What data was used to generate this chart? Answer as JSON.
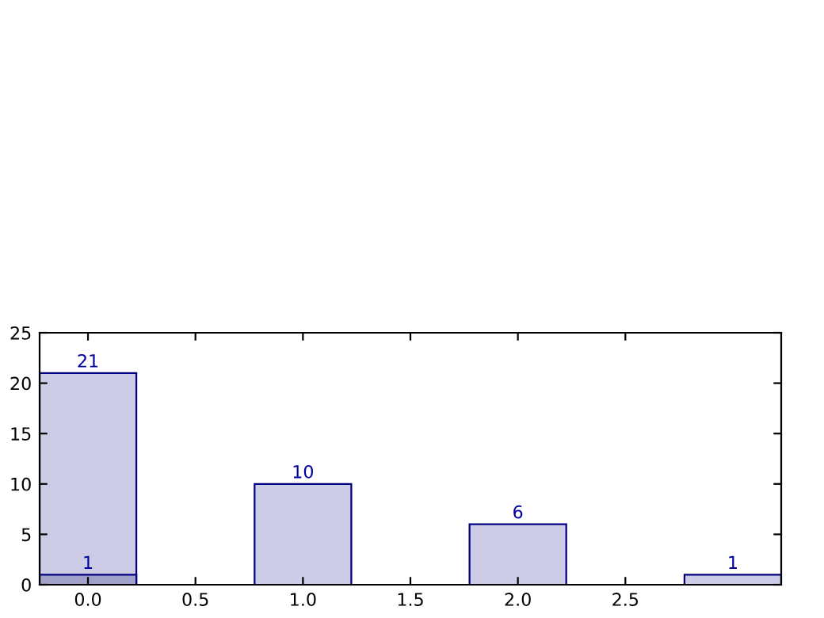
{
  "chart_data": {
    "type": "bar",
    "x": [
      0,
      1,
      2,
      3
    ],
    "series": [
      {
        "color": "#ccccE6",
        "values": [
          21,
          10,
          6,
          1
        ]
      },
      {
        "color": "#a0a0c8",
        "x": [
          0
        ],
        "values": [
          1
        ]
      }
    ],
    "data_labels": true,
    "xlim": [
      -0.225,
      3.225
    ],
    "ylim": [
      0,
      25
    ],
    "xticks": [
      {
        "value": 0,
        "label": "0.0"
      },
      {
        "value": 0.5,
        "label": "0.5"
      },
      {
        "value": 1,
        "label": "1.0"
      },
      {
        "value": 1.5,
        "label": "1.5"
      },
      {
        "value": 2,
        "label": "2.0"
      },
      {
        "value": 2.5,
        "label": "2.5"
      }
    ],
    "yticks": [
      0,
      5,
      10,
      15,
      20,
      25
    ],
    "grid": false
  }
}
